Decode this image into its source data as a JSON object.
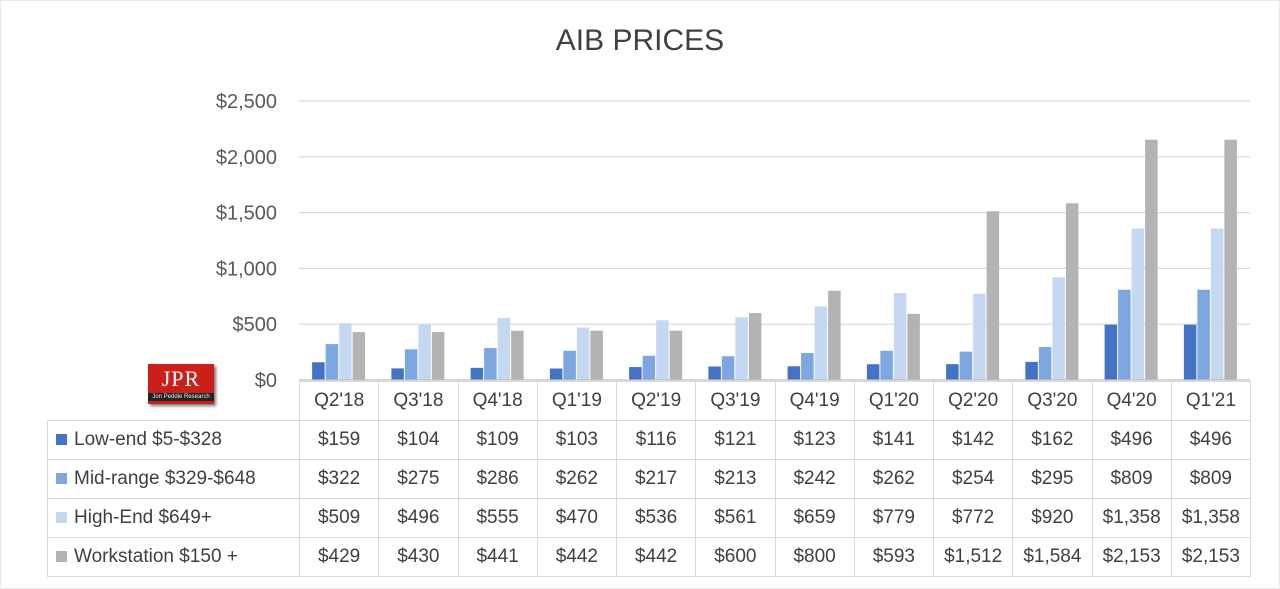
{
  "chart_data": {
    "type": "bar",
    "title": "AIB PRICES",
    "categories": [
      "Q2'18",
      "Q3'18",
      "Q4'18",
      "Q1'19",
      "Q2'19",
      "Q3'19",
      "Q4'19",
      "Q1'20",
      "Q2'20",
      "Q3'20",
      "Q4'20",
      "Q1'21"
    ],
    "ylim": [
      0,
      2500
    ],
    "yticks": [
      0,
      500,
      1000,
      1500,
      2000,
      2500
    ],
    "ytick_labels": [
      "$0",
      "$500",
      "$1,000",
      "$1,500",
      "$2,000",
      "$2,500"
    ],
    "grid": true,
    "legend_placement": "data-table",
    "series": [
      {
        "name": "Low-end $5-$328",
        "color": "#4472c4",
        "values": [
          159,
          104,
          109,
          103,
          116,
          121,
          123,
          141,
          142,
          162,
          496,
          496
        ],
        "labels": [
          "$159",
          "$104",
          "$109",
          "$103",
          "$116",
          "$121",
          "$123",
          "$141",
          "$142",
          "$162",
          "$496",
          "$496"
        ]
      },
      {
        "name": "Mid-range $329-$648",
        "color": "#7ea6e0",
        "values": [
          322,
          275,
          286,
          262,
          217,
          213,
          242,
          262,
          254,
          295,
          809,
          809
        ],
        "labels": [
          "$322",
          "$275",
          "$286",
          "$262",
          "$217",
          "$213",
          "$242",
          "$262",
          "$254",
          "$295",
          "$809",
          "$809"
        ]
      },
      {
        "name": "High-End $649+",
        "color": "#c5d8f1",
        "values": [
          509,
          496,
          555,
          470,
          536,
          561,
          659,
          779,
          772,
          920,
          1358,
          1358
        ],
        "labels": [
          "$509",
          "$496",
          "$555",
          "$470",
          "$536",
          "$561",
          "$659",
          "$779",
          "$772",
          "$920",
          "$1,358",
          "$1,358"
        ]
      },
      {
        "name": "Workstation $150 +",
        "color": "#b3b3b3",
        "values": [
          429,
          430,
          441,
          442,
          442,
          600,
          800,
          593,
          1512,
          1584,
          2153,
          2153
        ],
        "labels": [
          "$429",
          "$430",
          "$441",
          "$442",
          "$442",
          "$600",
          "$800",
          "$593",
          "$1,512",
          "$1,584",
          "$2,153",
          "$2,153"
        ]
      }
    ]
  },
  "logo": {
    "main": "JPR",
    "sub": "Jon Peddie Research"
  }
}
